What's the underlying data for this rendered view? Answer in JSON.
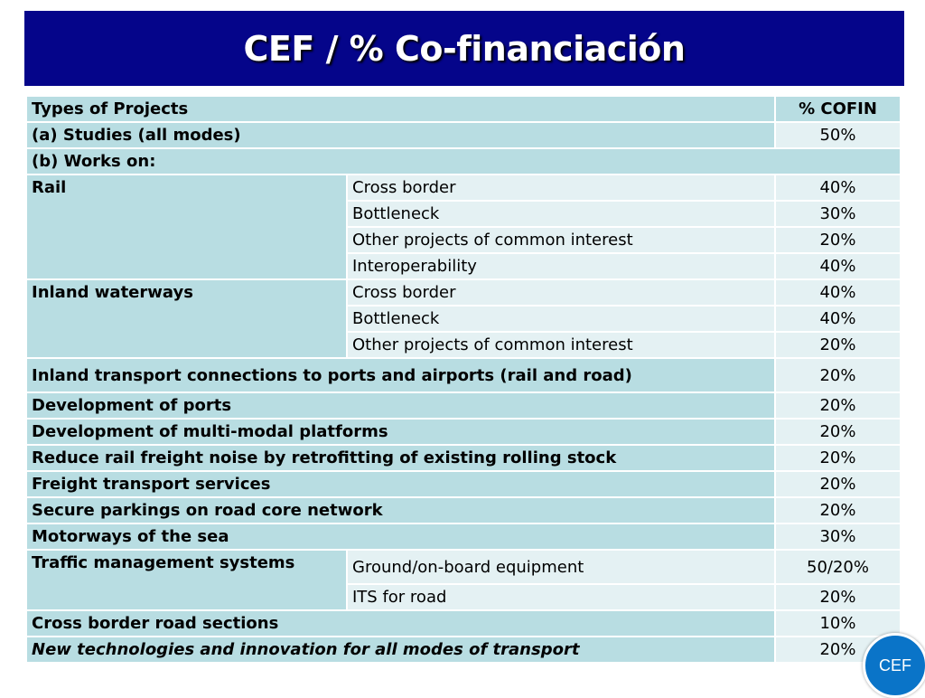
{
  "title": "CEF / % Co-financiación",
  "table": {
    "header": {
      "type": "Types of Projects",
      "cofin": "% COFIN"
    },
    "studies": {
      "label": "(a) Studies (all modes)",
      "pct": "50%"
    },
    "works": {
      "label": "(b) Works on:"
    },
    "rail": {
      "label": "Rail",
      "rows": [
        {
          "sub": "Cross border",
          "pct": "40%"
        },
        {
          "sub": "Bottleneck",
          "pct": "30%"
        },
        {
          "sub": "Other projects of common interest",
          "pct": "20%"
        },
        {
          "sub": "Interoperability",
          "pct": "40%"
        }
      ]
    },
    "waterways": {
      "label": "Inland waterways",
      "rows": [
        {
          "sub": "Cross border",
          "pct": "40%"
        },
        {
          "sub": "Bottleneck",
          "pct": "40%"
        },
        {
          "sub": "Other projects of common interest",
          "pct": "20%"
        }
      ]
    },
    "simple": [
      {
        "label": "Inland transport connections to ports and airports (rail and road)",
        "pct": "20%"
      },
      {
        "label": "Development of ports",
        "pct": "20%"
      },
      {
        "label": "Development of multi-modal platforms",
        "pct": "20%"
      },
      {
        "label": "Reduce rail freight noise by retrofitting of existing rolling stock",
        "pct": "20%"
      },
      {
        "label": "Freight transport services",
        "pct": "20%"
      },
      {
        "label": "Secure parkings on road core network",
        "pct": "20%"
      },
      {
        "label": "Motorways of the sea",
        "pct": "30%"
      }
    ],
    "traffic": {
      "label": "Traffic management systems",
      "rows": [
        {
          "sub": "Ground/on-board equipment",
          "pct": "50/20%"
        },
        {
          "sub": "ITS for road",
          "pct": "20%"
        }
      ]
    },
    "cross_border_road": {
      "label": "Cross border road sections",
      "pct": "10%"
    },
    "new_tech": {
      "label": "New technologies and innovation for all modes of transport",
      "pct": "20%"
    }
  },
  "badge": {
    "label": "CEF"
  },
  "colors": {
    "title_bg": "#05058a",
    "row_dark": "#b8dde2",
    "row_light": "#e4f1f3",
    "badge": "#0a74c8"
  }
}
